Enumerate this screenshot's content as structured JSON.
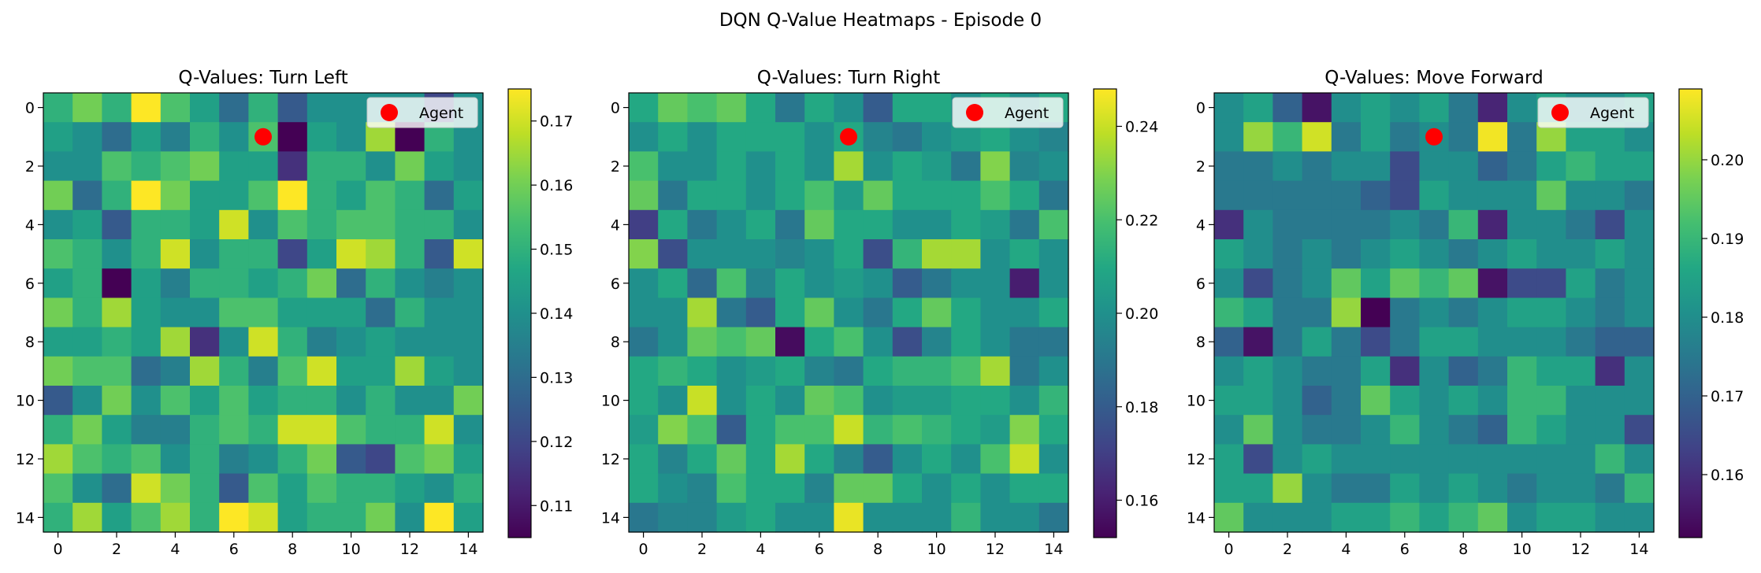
{
  "suptitle": "DQN Q-Value Heatmaps - Episode 0",
  "colormap": "viridis",
  "agent_color": "#ff0000",
  "chart_data": [
    {
      "type": "heatmap",
      "title": "Q-Values: Turn Left",
      "grid_size": 15,
      "x_ticks": [
        0,
        2,
        4,
        6,
        8,
        10,
        12,
        14
      ],
      "y_ticks": [
        0,
        2,
        4,
        6,
        8,
        10,
        12,
        14
      ],
      "colorbar_range": [
        0.105,
        0.175
      ],
      "colorbar_ticks": [
        0.11,
        0.12,
        0.13,
        0.14,
        0.15,
        0.16,
        0.17
      ],
      "agent": {
        "x": 7,
        "y": 1
      },
      "legend": {
        "label": "Agent",
        "position": "upper right"
      },
      "values": [
        [
          0.15,
          0.16,
          0.15,
          0.175,
          0.155,
          0.145,
          0.13,
          0.15,
          0.125,
          0.14,
          0.14,
          0.14,
          0.14,
          0.12,
          0.14
        ],
        [
          0.145,
          0.14,
          0.13,
          0.145,
          0.135,
          0.15,
          0.14,
          0.155,
          0.105,
          0.145,
          0.14,
          0.165,
          0.105,
          0.15,
          0.14
        ],
        [
          0.14,
          0.14,
          0.155,
          0.15,
          0.155,
          0.16,
          0.145,
          0.145,
          0.115,
          0.15,
          0.15,
          0.14,
          0.16,
          0.145,
          0.14
        ],
        [
          0.16,
          0.13,
          0.15,
          0.175,
          0.16,
          0.145,
          0.145,
          0.155,
          0.175,
          0.15,
          0.145,
          0.155,
          0.15,
          0.13,
          0.145
        ],
        [
          0.14,
          0.145,
          0.125,
          0.15,
          0.15,
          0.145,
          0.17,
          0.14,
          0.155,
          0.15,
          0.155,
          0.155,
          0.15,
          0.15,
          0.14
        ],
        [
          0.155,
          0.15,
          0.14,
          0.15,
          0.17,
          0.14,
          0.15,
          0.15,
          0.12,
          0.145,
          0.17,
          0.165,
          0.15,
          0.125,
          0.17
        ],
        [
          0.145,
          0.15,
          0.105,
          0.145,
          0.135,
          0.15,
          0.15,
          0.145,
          0.15,
          0.16,
          0.13,
          0.15,
          0.14,
          0.135,
          0.14
        ],
        [
          0.16,
          0.15,
          0.165,
          0.145,
          0.14,
          0.14,
          0.155,
          0.155,
          0.145,
          0.145,
          0.145,
          0.13,
          0.15,
          0.14,
          0.14
        ],
        [
          0.145,
          0.145,
          0.15,
          0.145,
          0.165,
          0.115,
          0.14,
          0.17,
          0.15,
          0.135,
          0.14,
          0.145,
          0.14,
          0.14,
          0.14
        ],
        [
          0.16,
          0.155,
          0.155,
          0.13,
          0.135,
          0.165,
          0.15,
          0.135,
          0.155,
          0.17,
          0.145,
          0.145,
          0.165,
          0.145,
          0.14
        ],
        [
          0.125,
          0.14,
          0.16,
          0.14,
          0.155,
          0.145,
          0.155,
          0.145,
          0.15,
          0.15,
          0.14,
          0.15,
          0.14,
          0.14,
          0.16
        ],
        [
          0.15,
          0.16,
          0.145,
          0.135,
          0.135,
          0.15,
          0.155,
          0.15,
          0.17,
          0.17,
          0.155,
          0.15,
          0.15,
          0.17,
          0.14
        ],
        [
          0.165,
          0.155,
          0.15,
          0.155,
          0.14,
          0.15,
          0.135,
          0.14,
          0.15,
          0.16,
          0.125,
          0.12,
          0.155,
          0.16,
          0.145
        ],
        [
          0.155,
          0.14,
          0.13,
          0.17,
          0.16,
          0.15,
          0.125,
          0.155,
          0.145,
          0.155,
          0.15,
          0.15,
          0.145,
          0.14,
          0.15
        ],
        [
          0.15,
          0.165,
          0.145,
          0.155,
          0.165,
          0.15,
          0.175,
          0.17,
          0.145,
          0.15,
          0.15,
          0.16,
          0.14,
          0.175,
          0.145
        ]
      ]
    },
    {
      "type": "heatmap",
      "title": "Q-Values: Turn Right",
      "grid_size": 15,
      "x_ticks": [
        0,
        2,
        4,
        6,
        8,
        10,
        12,
        14
      ],
      "y_ticks": [
        0,
        2,
        4,
        6,
        8,
        10,
        12,
        14
      ],
      "colorbar_range": [
        0.152,
        0.248
      ],
      "colorbar_ticks": [
        0.16,
        0.18,
        0.2,
        0.22,
        0.24
      ],
      "agent": {
        "x": 7,
        "y": 1
      },
      "legend": {
        "label": "Agent",
        "position": "upper right"
      },
      "values": [
        [
          0.21,
          0.225,
          0.22,
          0.225,
          0.21,
          0.19,
          0.21,
          0.2,
          0.18,
          0.21,
          0.21,
          0.2,
          0.21,
          0.2,
          0.21
        ],
        [
          0.2,
          0.21,
          0.2,
          0.21,
          0.21,
          0.21,
          0.2,
          0.21,
          0.195,
          0.19,
          0.2,
          0.205,
          0.21,
          0.2,
          0.195
        ],
        [
          0.22,
          0.2,
          0.2,
          0.21,
          0.2,
          0.21,
          0.2,
          0.235,
          0.2,
          0.21,
          0.205,
          0.19,
          0.23,
          0.195,
          0.2
        ],
        [
          0.225,
          0.19,
          0.21,
          0.21,
          0.2,
          0.21,
          0.22,
          0.205,
          0.225,
          0.21,
          0.21,
          0.21,
          0.22,
          0.21,
          0.19
        ],
        [
          0.17,
          0.21,
          0.19,
          0.2,
          0.21,
          0.19,
          0.225,
          0.21,
          0.21,
          0.2,
          0.2,
          0.21,
          0.205,
          0.19,
          0.22
        ],
        [
          0.23,
          0.175,
          0.2,
          0.2,
          0.2,
          0.195,
          0.2,
          0.21,
          0.175,
          0.215,
          0.235,
          0.235,
          0.2,
          0.21,
          0.2
        ],
        [
          0.2,
          0.21,
          0.185,
          0.22,
          0.195,
          0.21,
          0.2,
          0.205,
          0.2,
          0.18,
          0.19,
          0.2,
          0.2,
          0.16,
          0.2
        ],
        [
          0.2,
          0.2,
          0.235,
          0.19,
          0.18,
          0.21,
          0.225,
          0.2,
          0.19,
          0.21,
          0.225,
          0.21,
          0.2,
          0.2,
          0.21
        ],
        [
          0.19,
          0.2,
          0.225,
          0.22,
          0.225,
          0.155,
          0.21,
          0.22,
          0.2,
          0.175,
          0.195,
          0.21,
          0.2,
          0.19,
          0.19
        ],
        [
          0.21,
          0.215,
          0.21,
          0.2,
          0.205,
          0.21,
          0.195,
          0.19,
          0.21,
          0.215,
          0.215,
          0.22,
          0.235,
          0.19,
          0.2
        ],
        [
          0.21,
          0.2,
          0.24,
          0.2,
          0.21,
          0.2,
          0.225,
          0.22,
          0.2,
          0.205,
          0.205,
          0.21,
          0.21,
          0.2,
          0.215
        ],
        [
          0.205,
          0.23,
          0.22,
          0.18,
          0.21,
          0.22,
          0.22,
          0.24,
          0.215,
          0.22,
          0.215,
          0.21,
          0.205,
          0.23,
          0.21
        ],
        [
          0.21,
          0.195,
          0.21,
          0.225,
          0.21,
          0.235,
          0.21,
          0.195,
          0.18,
          0.2,
          0.21,
          0.2,
          0.22,
          0.24,
          0.2
        ],
        [
          0.21,
          0.2,
          0.195,
          0.22,
          0.21,
          0.21,
          0.195,
          0.225,
          0.225,
          0.21,
          0.2,
          0.21,
          0.2,
          0.21,
          0.21
        ],
        [
          0.19,
          0.195,
          0.195,
          0.205,
          0.21,
          0.2,
          0.2,
          0.245,
          0.2,
          0.2,
          0.2,
          0.215,
          0.2,
          0.2,
          0.19
        ]
      ]
    },
    {
      "type": "heatmap",
      "title": "Q-Values: Move Forward",
      "grid_size": 15,
      "x_ticks": [
        0,
        2,
        4,
        6,
        8,
        10,
        12,
        14
      ],
      "y_ticks": [
        0,
        2,
        4,
        6,
        8,
        10,
        12,
        14
      ],
      "colorbar_range": [
        0.152,
        0.209
      ],
      "colorbar_ticks": [
        0.16,
        0.17,
        0.18,
        0.19,
        0.2
      ],
      "agent": {
        "x": 7,
        "y": 1
      },
      "legend": {
        "label": "Agent",
        "position": "upper right"
      },
      "values": [
        [
          0.18,
          0.185,
          0.17,
          0.155,
          0.18,
          0.185,
          0.18,
          0.185,
          0.175,
          0.158,
          0.18,
          0.185,
          0.18,
          0.18,
          0.185
        ],
        [
          0.18,
          0.2,
          0.19,
          0.205,
          0.175,
          0.185,
          0.175,
          0.18,
          0.175,
          0.208,
          0.175,
          0.2,
          0.185,
          0.185,
          0.18
        ],
        [
          0.175,
          0.175,
          0.18,
          0.175,
          0.18,
          0.18,
          0.165,
          0.18,
          0.18,
          0.17,
          0.175,
          0.185,
          0.19,
          0.185,
          0.185
        ],
        [
          0.175,
          0.175,
          0.175,
          0.175,
          0.175,
          0.17,
          0.165,
          0.185,
          0.18,
          0.18,
          0.18,
          0.195,
          0.18,
          0.18,
          0.175
        ],
        [
          0.16,
          0.18,
          0.175,
          0.175,
          0.175,
          0.175,
          0.18,
          0.175,
          0.19,
          0.158,
          0.18,
          0.18,
          0.175,
          0.165,
          0.18
        ],
        [
          0.185,
          0.18,
          0.175,
          0.18,
          0.175,
          0.18,
          0.185,
          0.18,
          0.175,
          0.18,
          0.185,
          0.18,
          0.18,
          0.185,
          0.18
        ],
        [
          0.18,
          0.165,
          0.175,
          0.18,
          0.195,
          0.185,
          0.195,
          0.19,
          0.195,
          0.155,
          0.165,
          0.165,
          0.185,
          0.175,
          0.18
        ],
        [
          0.19,
          0.185,
          0.175,
          0.175,
          0.2,
          0.152,
          0.175,
          0.18,
          0.175,
          0.18,
          0.185,
          0.185,
          0.18,
          0.175,
          0.18
        ],
        [
          0.17,
          0.155,
          0.175,
          0.185,
          0.175,
          0.165,
          0.175,
          0.185,
          0.185,
          0.18,
          0.18,
          0.18,
          0.175,
          0.17,
          0.17
        ],
        [
          0.18,
          0.185,
          0.18,
          0.175,
          0.175,
          0.185,
          0.16,
          0.18,
          0.17,
          0.175,
          0.19,
          0.185,
          0.185,
          0.16,
          0.18
        ],
        [
          0.185,
          0.185,
          0.18,
          0.17,
          0.175,
          0.195,
          0.185,
          0.18,
          0.185,
          0.18,
          0.19,
          0.19,
          0.18,
          0.18,
          0.18
        ],
        [
          0.18,
          0.195,
          0.18,
          0.175,
          0.175,
          0.18,
          0.19,
          0.18,
          0.175,
          0.17,
          0.19,
          0.185,
          0.18,
          0.18,
          0.165
        ],
        [
          0.185,
          0.165,
          0.18,
          0.185,
          0.18,
          0.18,
          0.18,
          0.18,
          0.18,
          0.18,
          0.18,
          0.18,
          0.18,
          0.19,
          0.18
        ],
        [
          0.185,
          0.185,
          0.2,
          0.18,
          0.175,
          0.175,
          0.185,
          0.18,
          0.185,
          0.18,
          0.175,
          0.18,
          0.18,
          0.175,
          0.19
        ],
        [
          0.195,
          0.18,
          0.18,
          0.18,
          0.185,
          0.185,
          0.19,
          0.185,
          0.19,
          0.195,
          0.18,
          0.185,
          0.185,
          0.18,
          0.18
        ]
      ]
    }
  ]
}
